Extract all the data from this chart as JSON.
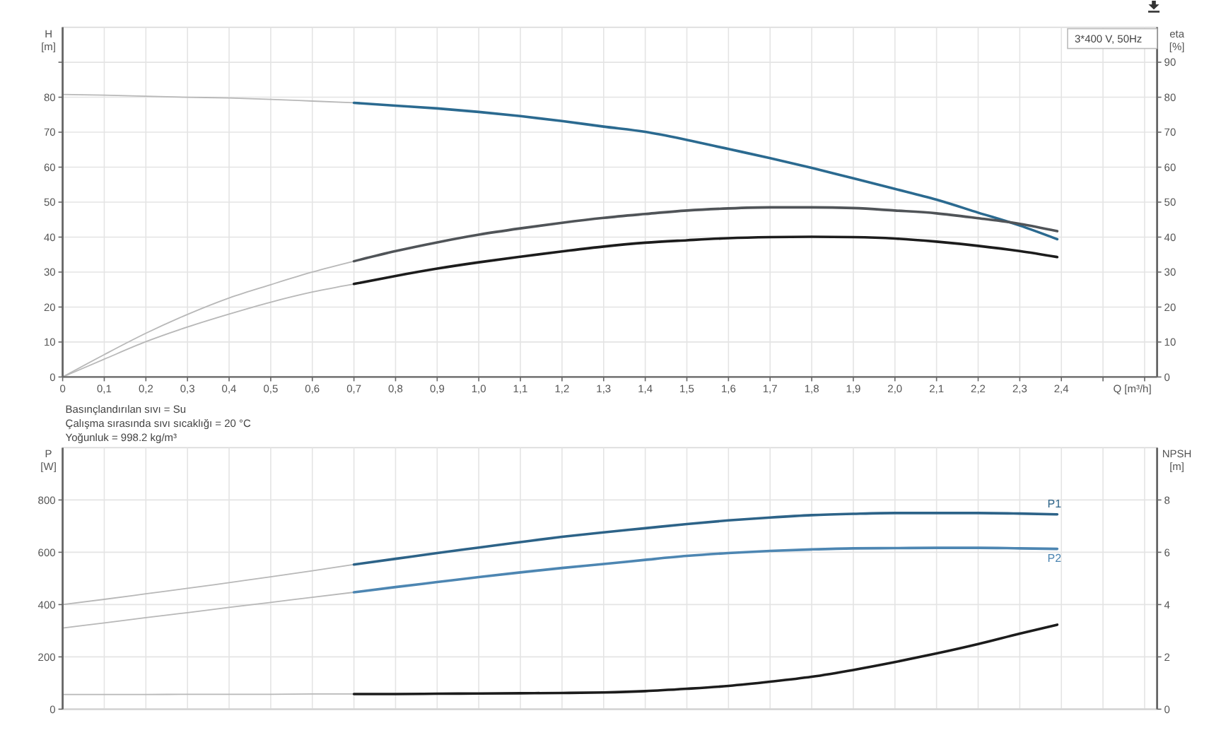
{
  "chart_data": [
    {
      "type": "line",
      "title": "3*400 V, 50Hz",
      "xlabel": "Q [m³/h]",
      "ylabel": "H [m]",
      "y2label": "eta [%]",
      "xlim": [
        0,
        2.63
      ],
      "ylim": [
        0,
        100
      ],
      "y2lim": [
        0,
        100
      ],
      "xticks": [
        0,
        {
          "value": 0.1,
          "label": "0,1"
        },
        {
          "value": 0.2,
          "label": "0,2"
        },
        {
          "value": 0.3,
          "label": "0,3"
        },
        {
          "value": 0.4,
          "label": "0,4"
        },
        {
          "value": 0.5,
          "label": "0,5"
        },
        {
          "value": 0.6,
          "label": "0,6"
        },
        {
          "value": 0.7,
          "label": "0,7"
        },
        {
          "value": 0.8,
          "label": "0,8"
        },
        {
          "value": 0.9,
          "label": "0,9"
        },
        {
          "value": 1,
          "label": "1,0"
        },
        {
          "value": 1.1,
          "label": "1,1"
        },
        {
          "value": 1.2,
          "label": "1,2"
        },
        {
          "value": 1.3,
          "label": "1,3"
        },
        {
          "value": 1.4,
          "label": "1,4"
        },
        {
          "value": 1.5,
          "label": "1,5"
        },
        {
          "value": 1.6,
          "label": "1,6"
        },
        {
          "value": 1.7,
          "label": "1,7"
        },
        {
          "value": 1.8,
          "label": "1,8"
        },
        {
          "value": 1.9,
          "label": "1,9"
        },
        {
          "value": 2,
          "label": "2,0"
        },
        {
          "value": 2.1,
          "label": "2,1"
        },
        {
          "value": 2.2,
          "label": "2,2"
        },
        {
          "value": 2.3,
          "label": "2,3"
        },
        {
          "value": 2.4,
          "label": "2,4"
        },
        {
          "value": 2.5,
          "label": null
        },
        {
          "value": 2.6,
          "label": null
        }
      ],
      "yticks": [
        0,
        10,
        20,
        30,
        40,
        50,
        60,
        70,
        80,
        {
          "value": 90,
          "label": null
        }
      ],
      "y2ticks": [
        0,
        10,
        20,
        30,
        40,
        50,
        60,
        70,
        80,
        90
      ],
      "grid": true,
      "series": [
        {
          "color": "#b8b8b8",
          "x": [
            0,
            0.1,
            0.2,
            0.3,
            0.4,
            0.5,
            0.6,
            0.7
          ],
          "values": [
            80.8,
            80.6,
            80.3,
            80.0,
            79.8,
            79.4,
            78.9,
            78.4
          ]
        },
        {
          "color": "#2b6a90",
          "x": [
            0.7,
            0.8,
            0.9,
            1.0,
            1.1,
            1.2,
            1.3,
            1.4,
            1.5,
            1.6,
            1.7,
            1.8,
            1.9,
            2.0,
            2.1,
            2.2,
            2.3,
            2.39
          ],
          "values": [
            78.4,
            77.6,
            76.8,
            75.8,
            74.6,
            73.2,
            71.6,
            70.1,
            67.8,
            65.2,
            62.6,
            59.8,
            56.8,
            53.8,
            50.7,
            47.0,
            43.3,
            39.4
          ]
        },
        {
          "color": "#b8b8b8",
          "axis": "y2",
          "x": [
            0,
            0.1,
            0.2,
            0.3,
            0.4,
            0.5,
            0.6,
            0.7
          ],
          "values": [
            0,
            6.4,
            12.5,
            17.9,
            22.6,
            26.4,
            30.0,
            33.1
          ]
        },
        {
          "color": "#505458",
          "axis": "y2",
          "x": [
            0.7,
            0.8,
            0.9,
            1.0,
            1.1,
            1.2,
            1.3,
            1.4,
            1.5,
            1.6,
            1.7,
            1.8,
            1.9,
            2.0,
            2.1,
            2.2,
            2.3,
            2.39
          ],
          "values": [
            33.1,
            36.0,
            38.5,
            40.7,
            42.5,
            44.1,
            45.5,
            46.6,
            47.6,
            48.2,
            48.5,
            48.5,
            48.3,
            47.6,
            46.8,
            45.4,
            43.8,
            41.7
          ]
        },
        {
          "color": "#b8b8b8",
          "axis": "y2",
          "x": [
            0,
            0.1,
            0.2,
            0.3,
            0.4,
            0.5,
            0.6,
            0.7
          ],
          "values": [
            0,
            5.1,
            10.1,
            14.3,
            18.0,
            21.4,
            24.3,
            26.6
          ]
        },
        {
          "color": "#1c1c1c",
          "axis": "y2",
          "x": [
            0.7,
            0.8,
            0.9,
            1.0,
            1.1,
            1.2,
            1.3,
            1.4,
            1.5,
            1.6,
            1.7,
            1.8,
            1.9,
            2.0,
            2.1,
            2.2,
            2.3,
            2.39
          ],
          "values": [
            26.6,
            28.9,
            31.0,
            32.8,
            34.4,
            35.9,
            37.3,
            38.4,
            39.1,
            39.7,
            40.0,
            40.1,
            40.0,
            39.6,
            38.7,
            37.5,
            36.0,
            34.3
          ]
        }
      ]
    },
    {
      "type": "line",
      "ylabel": "P [W]",
      "y2label": "NPSH [m]",
      "annotations": [
        "Basınçlandırılan sıvı = Su",
        "Çalışma sırasında sıvı sıcaklığı = 20 °C",
        "Yoğunluk = 998.2 kg/m³"
      ],
      "xlim": [
        0,
        2.63
      ],
      "ylim": [
        0,
        1000
      ],
      "y2lim": [
        0,
        10
      ],
      "tick_labels": "y",
      "xticks": [
        0,
        0.1,
        0.2,
        0.3,
        0.4,
        0.5,
        0.6,
        0.7,
        0.8,
        0.9,
        1,
        1.1,
        1.2,
        1.3,
        1.4,
        1.5,
        1.6,
        1.7,
        1.8,
        1.9,
        2,
        2.1,
        2.2,
        2.3,
        2.4,
        2.5,
        2.6
      ],
      "yticks": [
        0,
        200,
        400,
        600,
        800
      ],
      "y2ticks": [
        0,
        2,
        4,
        6,
        8
      ],
      "grid": true,
      "series": [
        {
          "color": "#b8b8b8",
          "x": [
            0,
            0.1,
            0.2,
            0.3,
            0.4,
            0.5,
            0.6,
            0.7
          ],
          "values": [
            400,
            420,
            441,
            462,
            484,
            506,
            529,
            553
          ]
        },
        {
          "name": "P1",
          "color": "#2d6388",
          "x": [
            0.7,
            0.8,
            0.9,
            1.0,
            1.1,
            1.2,
            1.3,
            1.4,
            1.5,
            1.6,
            1.7,
            1.8,
            1.9,
            2.0,
            2.1,
            2.2,
            2.3,
            2.39
          ],
          "values": [
            553,
            575,
            597,
            618,
            639,
            659,
            676,
            692,
            708,
            722,
            733,
            742,
            747,
            750,
            750,
            750,
            748,
            745
          ]
        },
        {
          "color": "#b8b8b8",
          "x": [
            0,
            0.1,
            0.2,
            0.3,
            0.4,
            0.5,
            0.6,
            0.7
          ],
          "values": [
            310,
            330,
            350,
            369,
            389,
            408,
            428,
            447
          ]
        },
        {
          "name": "P2",
          "color": "#4d86b2",
          "x": [
            0.7,
            0.8,
            0.9,
            1.0,
            1.1,
            1.2,
            1.3,
            1.4,
            1.5,
            1.6,
            1.7,
            1.8,
            1.9,
            2.0,
            2.1,
            2.2,
            2.3,
            2.39
          ],
          "values": [
            447,
            467,
            486,
            505,
            523,
            540,
            555,
            571,
            586,
            597,
            605,
            611,
            615,
            616,
            617,
            617,
            615,
            613
          ]
        },
        {
          "color": "#b8b8b8",
          "axis": "y2",
          "x": [
            0,
            0.1,
            0.2,
            0.3,
            0.4,
            0.5,
            0.6,
            0.7
          ],
          "values": [
            0.56,
            0.56,
            0.56,
            0.57,
            0.57,
            0.57,
            0.58,
            0.58
          ]
        },
        {
          "color": "#1c1c1c",
          "axis": "y2",
          "x": [
            0.7,
            0.8,
            0.9,
            1.0,
            1.1,
            1.2,
            1.3,
            1.4,
            1.5,
            1.6,
            1.7,
            1.8,
            1.9,
            2.0,
            2.1,
            2.2,
            2.3,
            2.39
          ],
          "values": [
            0.58,
            0.58,
            0.59,
            0.6,
            0.61,
            0.62,
            0.64,
            0.69,
            0.78,
            0.89,
            1.05,
            1.24,
            1.5,
            1.8,
            2.13,
            2.49,
            2.89,
            3.23
          ]
        }
      ]
    }
  ]
}
